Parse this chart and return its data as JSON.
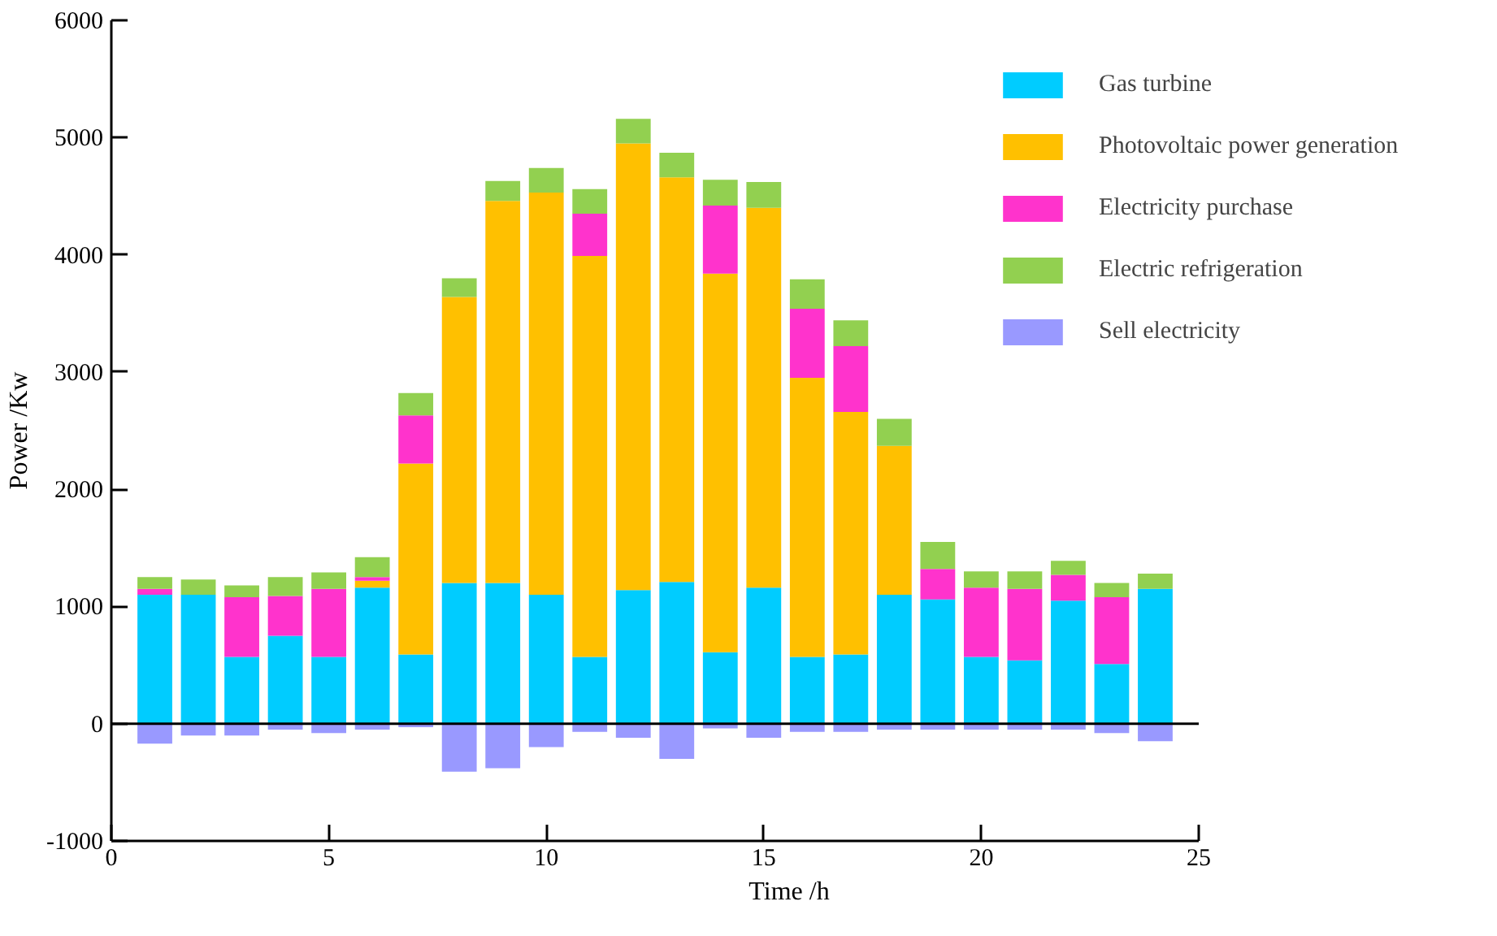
{
  "chart_data": {
    "type": "bar",
    "xlabel": "Time /h",
    "ylabel": "Power /Kw",
    "stacked": true,
    "x": [
      1,
      2,
      3,
      4,
      5,
      6,
      7,
      8,
      9,
      10,
      11,
      12,
      13,
      14,
      15,
      16,
      17,
      18,
      19,
      20,
      21,
      22,
      23,
      24
    ],
    "xlim": [
      0,
      25
    ],
    "xticks": [
      0,
      5,
      10,
      15,
      20,
      25
    ],
    "ylim": [
      -1000,
      6000
    ],
    "yticks": [
      -1000,
      0,
      1000,
      2000,
      3000,
      4000,
      5000,
      6000
    ],
    "series": [
      {
        "name": "Gas turbine",
        "color": "#00ccff",
        "values": [
          1100,
          1100,
          570,
          750,
          570,
          1160,
          590,
          1200,
          1200,
          1100,
          570,
          1140,
          1210,
          610,
          1160,
          570,
          590,
          1100,
          1060,
          570,
          540,
          1050,
          510,
          1150
        ]
      },
      {
        "name": "Photovoltaic power generation",
        "color": "#ffc000",
        "values": [
          0,
          0,
          0,
          0,
          0,
          60,
          1630,
          2440,
          3260,
          3430,
          3420,
          3810,
          3450,
          3230,
          3240,
          2380,
          2070,
          1270,
          0,
          0,
          0,
          0,
          0,
          0
        ]
      },
      {
        "name": "Electricity purchase",
        "color": "#ff33cc",
        "values": [
          50,
          0,
          510,
          340,
          580,
          30,
          410,
          0,
          0,
          0,
          360,
          0,
          0,
          580,
          0,
          590,
          560,
          0,
          260,
          590,
          610,
          220,
          570,
          0
        ]
      },
      {
        "name": "Electric refrigeration",
        "color": "#92d050",
        "values": [
          100,
          130,
          100,
          160,
          140,
          170,
          190,
          160,
          170,
          210,
          210,
          210,
          210,
          220,
          220,
          250,
          220,
          230,
          230,
          140,
          150,
          120,
          120,
          130
        ]
      },
      {
        "name": "Sell electricity",
        "color": "#9999ff",
        "values": [
          -170,
          -100,
          -100,
          -50,
          -80,
          -50,
          -30,
          -410,
          -380,
          -200,
          -70,
          -120,
          -300,
          -40,
          -120,
          -70,
          -70,
          -50,
          -50,
          -50,
          -50,
          -50,
          -80,
          -150
        ]
      }
    ],
    "ref_lines": [
      {
        "axis": "y",
        "value": 0,
        "color": "#000000"
      }
    ],
    "grid": false,
    "legend": "top right"
  }
}
